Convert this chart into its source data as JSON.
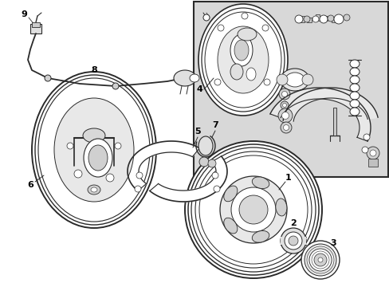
{
  "bg_color": "#ffffff",
  "inset_bg_color": "#d8d8d8",
  "line_color": "#2a2a2a",
  "label_color": "#000000",
  "fig_width": 4.89,
  "fig_height": 3.6,
  "dpi": 100
}
